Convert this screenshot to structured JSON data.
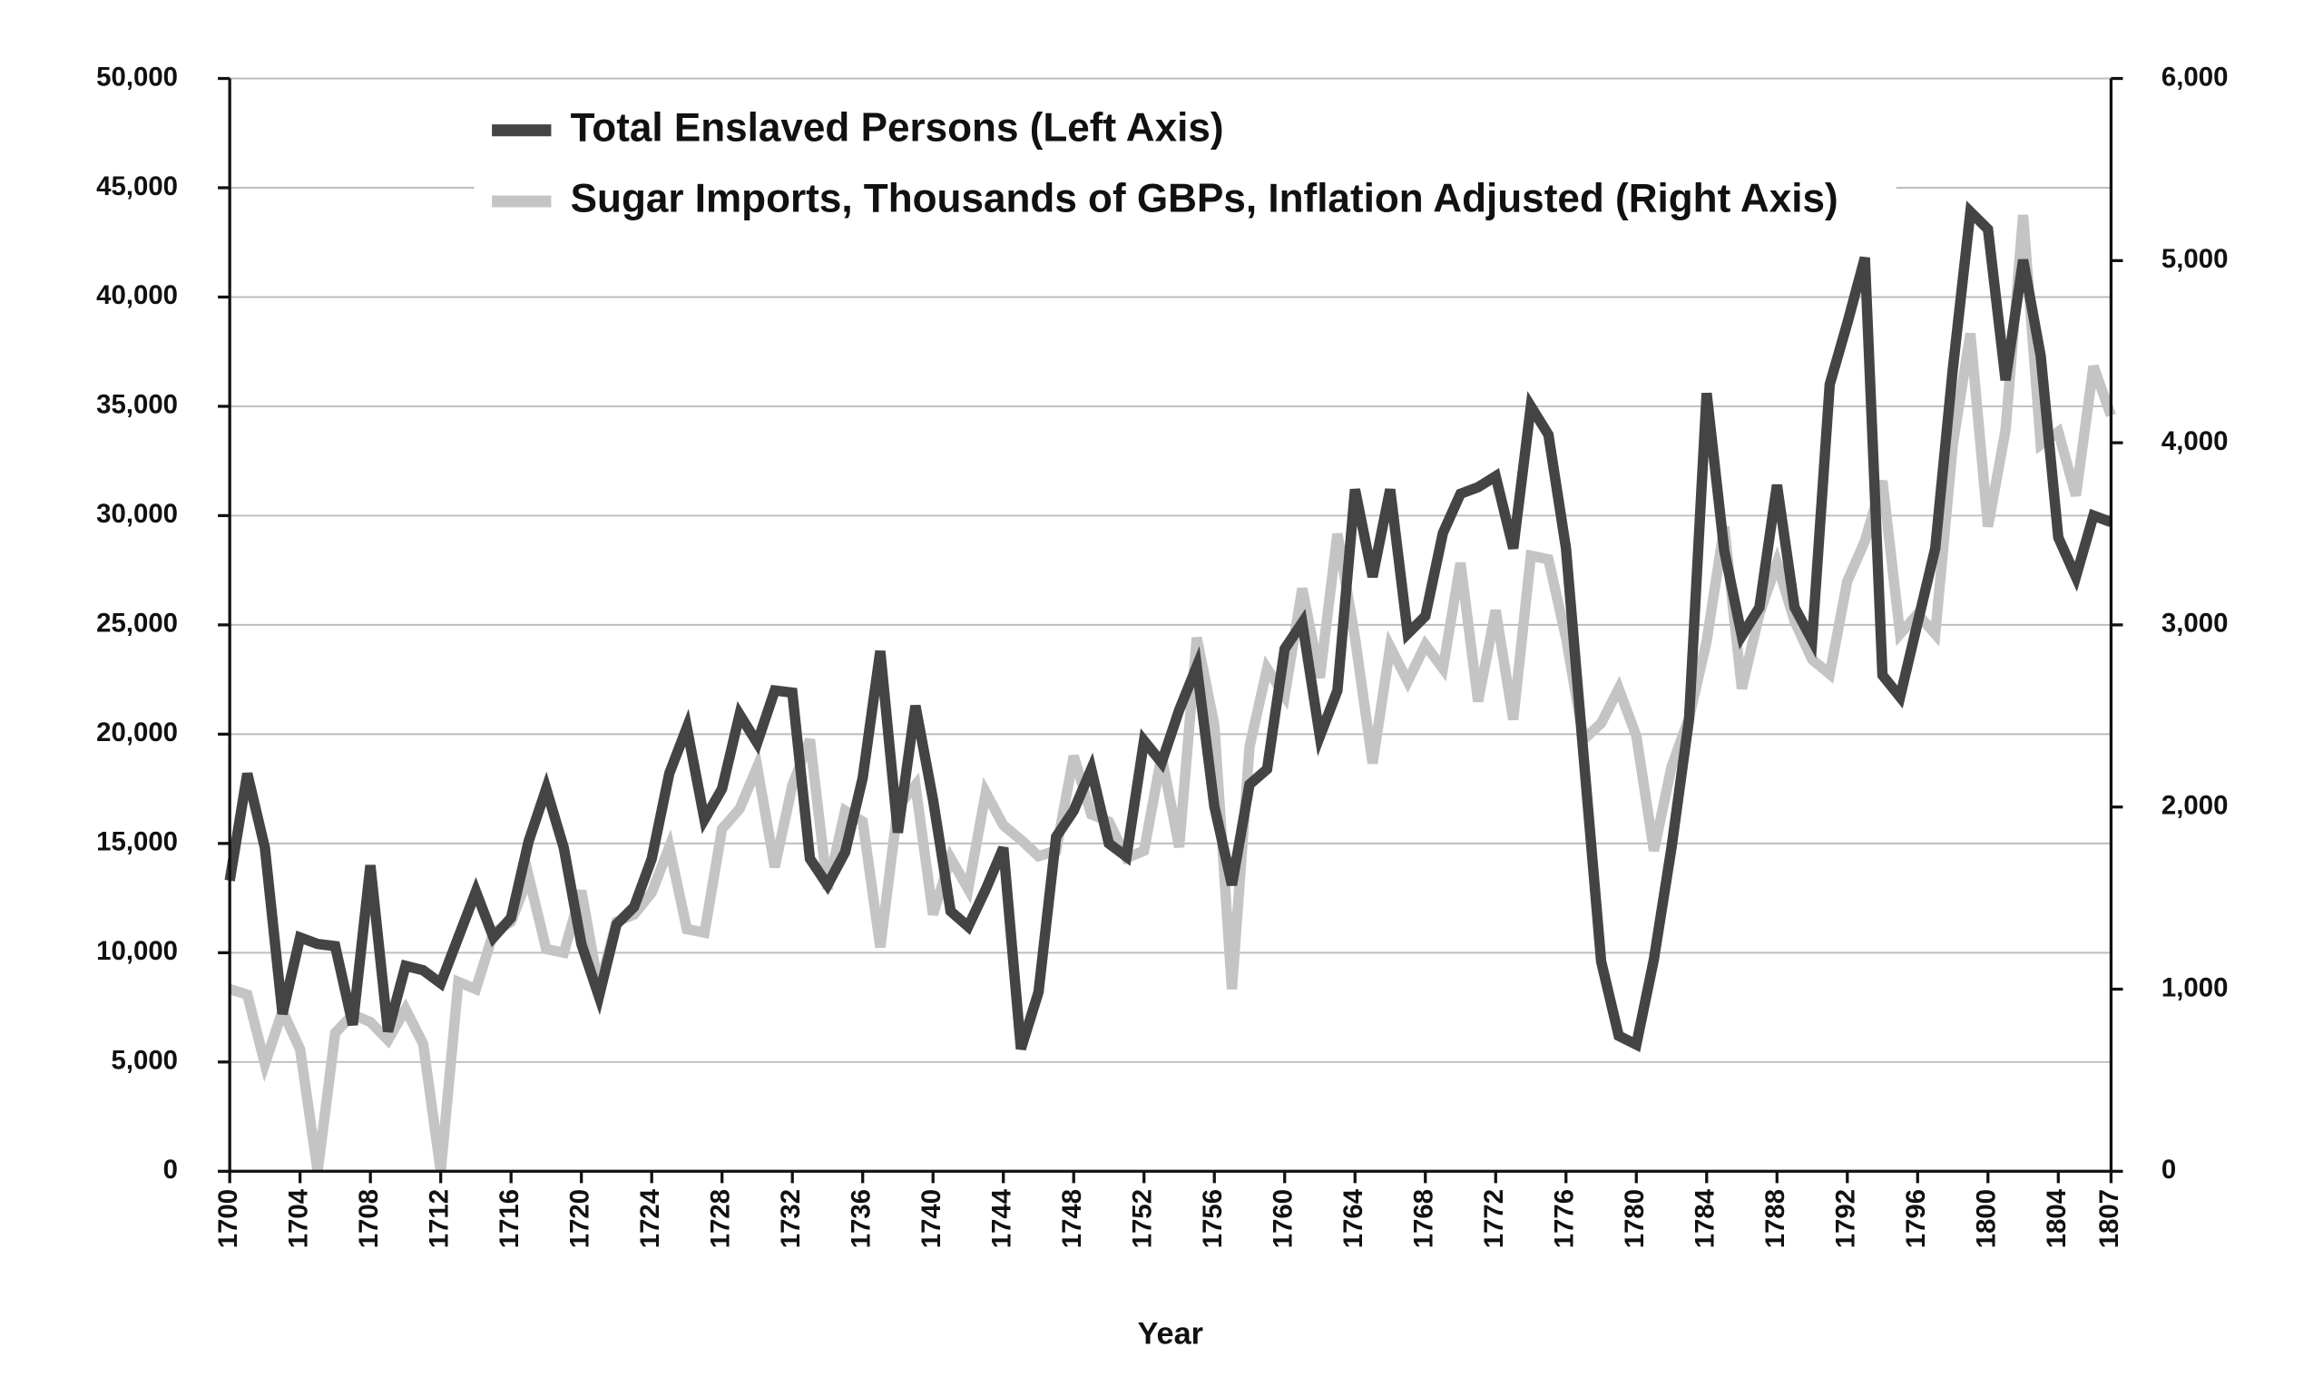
{
  "chart_data": {
    "type": "line",
    "xlabel": "Year",
    "x": [
      1700,
      1701,
      1702,
      1703,
      1704,
      1705,
      1706,
      1707,
      1708,
      1709,
      1710,
      1711,
      1712,
      1713,
      1714,
      1715,
      1716,
      1717,
      1718,
      1719,
      1720,
      1721,
      1722,
      1723,
      1724,
      1725,
      1726,
      1727,
      1728,
      1729,
      1730,
      1731,
      1732,
      1733,
      1734,
      1735,
      1736,
      1737,
      1738,
      1739,
      1740,
      1741,
      1742,
      1743,
      1744,
      1745,
      1746,
      1747,
      1748,
      1749,
      1750,
      1751,
      1752,
      1753,
      1754,
      1755,
      1756,
      1757,
      1758,
      1759,
      1760,
      1761,
      1762,
      1763,
      1764,
      1765,
      1766,
      1767,
      1768,
      1769,
      1770,
      1771,
      1772,
      1773,
      1774,
      1775,
      1776,
      1777,
      1778,
      1779,
      1780,
      1781,
      1782,
      1783,
      1784,
      1785,
      1786,
      1787,
      1788,
      1789,
      1790,
      1791,
      1792,
      1793,
      1794,
      1795,
      1796,
      1797,
      1798,
      1799,
      1800,
      1801,
      1802,
      1803,
      1804,
      1805,
      1806,
      1807
    ],
    "series": [
      {
        "name": "Sugar Imports, Thousands of GBPs, Inflation Adjusted (Right Axis)",
        "color": "#c4c4c4",
        "axis": "y2",
        "values": [
          1000,
          970,
          590,
          880,
          670,
          0,
          760,
          860,
          820,
          720,
          890,
          700,
          0,
          1040,
          1000,
          1310,
          1370,
          1620,
          1220,
          1200,
          1540,
          1000,
          1370,
          1410,
          1530,
          1780,
          1330,
          1310,
          1880,
          1990,
          2220,
          1670,
          2120,
          2370,
          1550,
          1980,
          1920,
          1230,
          2000,
          2120,
          1410,
          1720,
          1550,
          2080,
          1900,
          1820,
          1730,
          1760,
          2280,
          1960,
          1920,
          1720,
          1760,
          2280,
          1780,
          2930,
          2450,
          1000,
          2330,
          2760,
          2610,
          3200,
          2710,
          3500,
          2930,
          2240,
          2880,
          2690,
          2890,
          2760,
          3340,
          2580,
          3080,
          2480,
          3380,
          3360,
          2930,
          2370,
          2460,
          2650,
          2390,
          1760,
          2220,
          2490,
          2910,
          3540,
          2650,
          3060,
          3340,
          3020,
          2810,
          2730,
          3240,
          3460,
          3790,
          2950,
          3060,
          2950,
          3990,
          4600,
          3540,
          4070,
          5250,
          3990,
          4060,
          3710,
          4420,
          4150
        ]
      },
      {
        "name": "Total Enslaved Persons (Left Axis)",
        "color": "#444444",
        "axis": "y",
        "values": [
          13300,
          18200,
          14800,
          7200,
          10700,
          10400,
          10300,
          6700,
          14000,
          6400,
          9400,
          9200,
          8600,
          10700,
          12800,
          10700,
          11600,
          15100,
          17500,
          14800,
          10400,
          8000,
          11300,
          12100,
          14300,
          18200,
          20300,
          16100,
          17500,
          20900,
          19600,
          22000,
          21900,
          14300,
          13100,
          14600,
          18000,
          23800,
          15500,
          21300,
          17000,
          11900,
          11200,
          12900,
          14800,
          5600,
          8200,
          15300,
          16500,
          18400,
          15000,
          14400,
          19700,
          18700,
          21100,
          23100,
          16700,
          13100,
          17700,
          18400,
          23900,
          25100,
          19900,
          22000,
          31200,
          27200,
          31200,
          24600,
          25400,
          29200,
          31000,
          31300,
          31800,
          28500,
          35000,
          33700,
          28500,
          19000,
          9600,
          6200,
          5800,
          9700,
          14800,
          20700,
          35600,
          28400,
          24500,
          25800,
          31400,
          25800,
          24300,
          36000,
          38800,
          41800,
          22700,
          21700,
          25100,
          28500,
          36700,
          43900,
          43100,
          36200,
          41700,
          37300,
          29000,
          27200,
          30000,
          29700
        ]
      }
    ],
    "legend_order": [
      1,
      0
    ],
    "legend": "upper left",
    "xlim": [
      1700,
      1807
    ],
    "xticks": [
      1700,
      1704,
      1708,
      1712,
      1716,
      1720,
      1724,
      1728,
      1732,
      1736,
      1740,
      1744,
      1748,
      1752,
      1756,
      1760,
      1764,
      1768,
      1772,
      1776,
      1780,
      1784,
      1788,
      1792,
      1796,
      1800,
      1804,
      1807
    ],
    "ylim": [
      0,
      50000
    ],
    "yticks": [
      0,
      {
        "value": 5000,
        "label": "5,000"
      },
      {
        "value": 10000,
        "label": "10,000"
      },
      {
        "value": 15000,
        "label": "15,000"
      },
      {
        "value": 20000,
        "label": "20,000"
      },
      {
        "value": 25000,
        "label": "25,000"
      },
      {
        "value": 30000,
        "label": "30,000"
      },
      {
        "value": 35000,
        "label": "35,000"
      },
      {
        "value": 40000,
        "label": "40,000"
      },
      {
        "value": 45000,
        "label": "45,000"
      },
      {
        "value": 50000,
        "label": "50,000"
      }
    ],
    "y2lim": [
      0,
      6000
    ],
    "y2ticks": [
      0,
      {
        "value": 1000,
        "label": "1,000"
      },
      {
        "value": 2000,
        "label": "2,000"
      },
      {
        "value": 3000,
        "label": "3,000"
      },
      {
        "value": 4000,
        "label": "4,000"
      },
      {
        "value": 5000,
        "label": "5,000"
      },
      {
        "value": 6000,
        "label": "6,000"
      }
    ],
    "grid": true
  }
}
